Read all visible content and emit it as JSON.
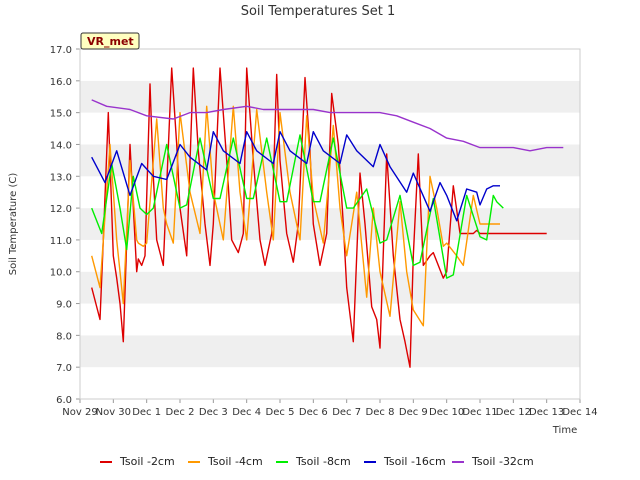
{
  "chart_data": {
    "type": "line",
    "title": "Soil Temperatures Set 1",
    "xlabel": "Time",
    "ylabel": "Soil Temperature (C)",
    "station_badge": "VR_met",
    "ylim": [
      6.0,
      17.0
    ],
    "yticks": [
      "6.0",
      "7.0",
      "8.0",
      "9.0",
      "10.0",
      "11.0",
      "12.0",
      "13.0",
      "14.0",
      "15.0",
      "16.0",
      "17.0"
    ],
    "xlim": [
      0,
      15
    ],
    "xticks": [
      "Nov 29",
      "Nov 30",
      "Dec 1",
      "Dec 2",
      "Dec 3",
      "Dec 4",
      "Dec 5",
      "Dec 6",
      "Dec 7",
      "Dec 8",
      "Dec 9",
      "Dec 10",
      "Dec 11",
      "Dec 12",
      "Dec 13",
      "Dec 14"
    ],
    "x_units": "days since Nov 29 00:00",
    "series": [
      {
        "name": "Tsoil -2cm",
        "color": "#dd0000",
        "x": [
          0.35,
          0.6,
          0.7,
          0.85,
          1.0,
          1.1,
          1.2,
          1.3,
          1.5,
          1.7,
          1.75,
          1.85,
          1.95,
          2.1,
          2.2,
          2.3,
          2.5,
          2.75,
          2.9,
          3.0,
          3.2,
          3.4,
          3.55,
          3.75,
          3.9,
          4.0,
          4.2,
          4.4,
          4.55,
          4.75,
          4.9,
          5.0,
          5.2,
          5.4,
          5.55,
          5.75,
          5.9,
          6.0,
          6.2,
          6.4,
          6.55,
          6.75,
          6.9,
          7.0,
          7.2,
          7.4,
          7.55,
          7.75,
          7.9,
          8.0,
          8.2,
          8.4,
          8.55,
          8.75,
          8.9,
          9.0,
          9.2,
          9.4,
          9.6,
          9.75,
          9.9,
          10.0,
          10.15,
          10.3,
          10.5,
          10.6,
          10.9,
          11.0,
          11.2,
          11.4,
          11.6,
          11.8,
          11.9,
          12.0,
          12.2,
          12.4,
          12.7,
          12.75,
          13.0,
          13.2,
          13.3,
          13.5,
          13.6,
          13.75,
          13.9,
          14.0
        ],
        "y": [
          9.5,
          8.5,
          11.0,
          15.0,
          10.5,
          9.8,
          9.0,
          7.8,
          14.0,
          10.0,
          10.4,
          10.2,
          10.5,
          15.9,
          13.0,
          11.0,
          10.2,
          16.4,
          14.0,
          12.0,
          10.5,
          16.4,
          13.8,
          11.5,
          10.2,
          11.5,
          16.4,
          13.5,
          11.0,
          10.6,
          11.2,
          16.4,
          13.5,
          11.0,
          10.2,
          11.2,
          16.2,
          13.5,
          11.2,
          10.3,
          11.5,
          16.1,
          13.8,
          11.5,
          10.2,
          11.2,
          15.6,
          14.0,
          11.5,
          9.5,
          7.8,
          13.1,
          11.5,
          8.9,
          8.5,
          7.6,
          13.7,
          10.5,
          8.5,
          7.8,
          7.0,
          10.5,
          13.7,
          10.2,
          10.5,
          10.6,
          9.8,
          10.0,
          12.7,
          11.2,
          11.2,
          11.2,
          11.3,
          11.2,
          11.2,
          11.2,
          11.2,
          11.2,
          11.2,
          11.2,
          11.2,
          11.2,
          11.2,
          11.2,
          11.2,
          11.2
        ]
      },
      {
        "name": "Tsoil -4cm",
        "color": "#ff9900",
        "x": [
          0.35,
          0.6,
          0.9,
          1.1,
          1.3,
          1.5,
          1.7,
          1.75,
          1.9,
          2.0,
          2.3,
          2.5,
          2.6,
          2.8,
          3.0,
          3.3,
          3.6,
          3.8,
          4.0,
          4.3,
          4.6,
          4.8,
          5.0,
          5.3,
          5.6,
          5.8,
          6.0,
          6.3,
          6.6,
          6.8,
          7.0,
          7.3,
          7.6,
          7.8,
          8.0,
          8.3,
          8.6,
          8.8,
          9.0,
          9.3,
          9.6,
          9.8,
          10.0,
          10.3,
          10.5,
          10.7,
          10.9,
          11.0,
          11.3,
          11.5,
          11.8,
          12.0,
          12.2,
          12.4,
          12.6
        ],
        "y": [
          10.5,
          9.5,
          14.0,
          11.0,
          9.0,
          13.5,
          11.0,
          10.9,
          10.8,
          10.9,
          14.8,
          12.0,
          11.5,
          10.9,
          15.0,
          12.5,
          11.2,
          15.2,
          12.5,
          11.0,
          15.2,
          12.5,
          11.0,
          15.1,
          12.5,
          11.0,
          15.0,
          12.5,
          11.0,
          14.9,
          12.3,
          10.9,
          14.6,
          12.0,
          10.5,
          12.5,
          9.2,
          12.0,
          10.0,
          8.6,
          12.2,
          10.0,
          8.8,
          8.3,
          13.0,
          12.0,
          10.8,
          10.9,
          10.5,
          10.2,
          12.4,
          11.5,
          11.5,
          11.5,
          11.5
        ]
      },
      {
        "name": "Tsoil -8cm",
        "color": "#00ee00",
        "x": [
          0.35,
          0.65,
          0.95,
          1.2,
          1.4,
          1.6,
          1.8,
          2.0,
          2.2,
          2.6,
          3.0,
          3.2,
          3.6,
          4.0,
          4.2,
          4.6,
          5.0,
          5.2,
          5.6,
          6.0,
          6.2,
          6.6,
          7.0,
          7.2,
          7.6,
          8.0,
          8.2,
          8.6,
          9.0,
          9.2,
          9.6,
          10.0,
          10.2,
          10.6,
          11.0,
          11.2,
          11.6,
          12.0,
          12.2,
          12.4,
          12.5,
          12.7
        ],
        "y": [
          12.0,
          11.2,
          13.4,
          12.0,
          10.7,
          13.0,
          12.0,
          11.8,
          12.0,
          14.0,
          12.0,
          12.1,
          14.2,
          12.3,
          12.3,
          14.2,
          12.3,
          12.3,
          14.2,
          12.2,
          12.2,
          14.3,
          12.2,
          12.2,
          14.2,
          12.0,
          12.0,
          12.6,
          10.9,
          11.0,
          12.4,
          10.2,
          10.3,
          12.3,
          9.8,
          9.9,
          12.4,
          11.1,
          11.0,
          12.4,
          12.2,
          12.0
        ]
      },
      {
        "name": "Tsoil -16cm",
        "color": "#0000cc",
        "x": [
          0.35,
          0.75,
          1.1,
          1.5,
          1.85,
          2.2,
          2.6,
          3.0,
          3.3,
          3.8,
          4.0,
          4.3,
          4.8,
          5.0,
          5.3,
          5.8,
          6.0,
          6.3,
          6.8,
          7.0,
          7.3,
          7.8,
          8.0,
          8.3,
          8.8,
          9.0,
          9.3,
          9.8,
          10.0,
          10.5,
          10.8,
          11.0,
          11.3,
          11.6,
          11.9,
          12.0,
          12.2,
          12.4,
          12.6
        ],
        "y": [
          13.6,
          12.8,
          13.8,
          12.4,
          13.4,
          13.0,
          12.9,
          14.0,
          13.6,
          13.2,
          14.4,
          13.8,
          13.4,
          14.4,
          13.8,
          13.4,
          14.4,
          13.8,
          13.4,
          14.4,
          13.8,
          13.4,
          14.3,
          13.8,
          13.3,
          14.0,
          13.3,
          12.5,
          13.1,
          11.9,
          12.8,
          12.4,
          11.6,
          12.6,
          12.5,
          12.1,
          12.6,
          12.7,
          12.7
        ]
      },
      {
        "name": "Tsoil -32cm",
        "color": "#9933cc",
        "x": [
          0.35,
          0.8,
          1.5,
          2.0,
          2.8,
          3.3,
          3.8,
          4.3,
          5.0,
          5.5,
          6.0,
          6.5,
          7.0,
          7.5,
          8.0,
          8.5,
          9.0,
          9.5,
          10.0,
          10.5,
          11.0,
          11.5,
          12.0,
          12.5,
          13.0,
          13.5,
          14.0,
          14.5
        ],
        "y": [
          15.4,
          15.2,
          15.1,
          14.9,
          14.8,
          15.0,
          15.0,
          15.1,
          15.2,
          15.1,
          15.1,
          15.1,
          15.1,
          15.0,
          15.0,
          15.0,
          15.0,
          14.9,
          14.7,
          14.5,
          14.2,
          14.1,
          13.9,
          13.9,
          13.9,
          13.8,
          13.9,
          13.9
        ]
      }
    ],
    "legend_position": "bottom-center",
    "grid": "horizontal alternating bands"
  }
}
